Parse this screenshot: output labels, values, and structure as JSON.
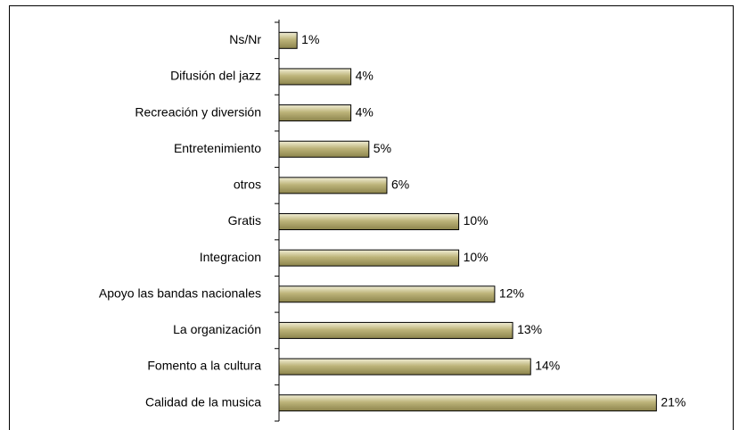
{
  "chart_data": {
    "type": "bar",
    "orientation": "horizontal",
    "categories": [
      "Ns/Nr",
      "Difusión del jazz",
      "Recreación y diversión",
      "Entretenimiento",
      "otros",
      "Gratis",
      "Integracion",
      "Apoyo las bandas nacionales",
      "La organización",
      "Fomento a la cultura",
      "Calidad de la musica"
    ],
    "values": [
      1,
      4,
      4,
      5,
      6,
      10,
      10,
      12,
      13,
      14,
      21
    ],
    "value_labels": [
      "1%",
      "4%",
      "4%",
      "5%",
      "6%",
      "10%",
      "10%",
      "12%",
      "13%",
      "14%",
      "21%"
    ],
    "color": "#bdb47a",
    "xlim": [
      0,
      25
    ]
  }
}
